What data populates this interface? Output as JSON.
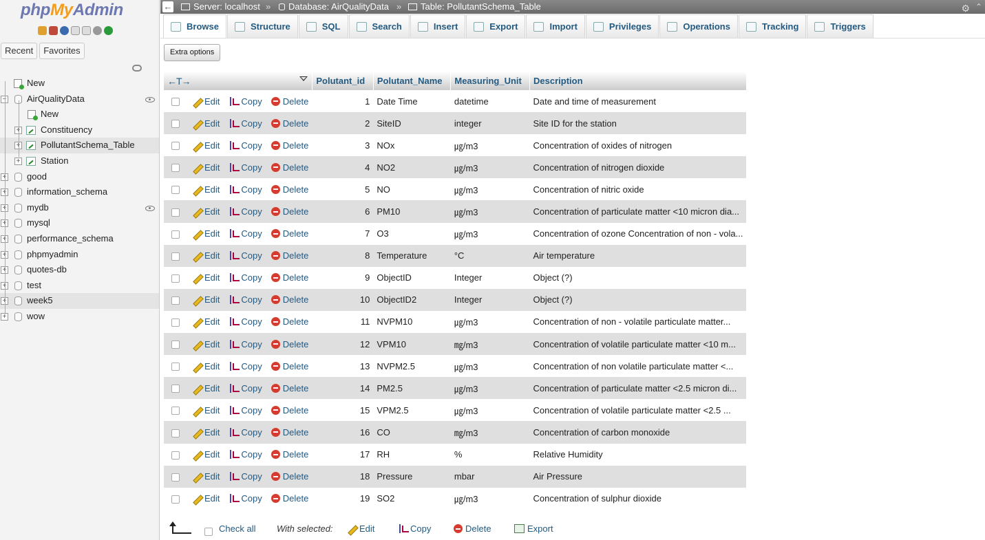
{
  "nav": {
    "logo_php": "php",
    "logo_my": "My",
    "logo_admin": "Admin",
    "tabs": [
      "Recent",
      "Favorites"
    ],
    "tree": [
      {
        "label": "New",
        "kind": "new",
        "level": 0
      },
      {
        "label": "AirQualityData",
        "kind": "db",
        "level": 0,
        "expanded": true,
        "eye": true
      },
      {
        "label": "New",
        "kind": "new",
        "level": 1
      },
      {
        "label": "Constituency",
        "kind": "table",
        "level": 1
      },
      {
        "label": "PollutantSchema_Table",
        "kind": "table",
        "level": 1,
        "selected": true
      },
      {
        "label": "Station",
        "kind": "table",
        "level": 1
      },
      {
        "label": "good",
        "kind": "db",
        "level": 0
      },
      {
        "label": "information_schema",
        "kind": "db",
        "level": 0
      },
      {
        "label": "mydb",
        "kind": "db",
        "level": 0,
        "eye": true
      },
      {
        "label": "mysql",
        "kind": "db",
        "level": 0
      },
      {
        "label": "performance_schema",
        "kind": "db",
        "level": 0
      },
      {
        "label": "phpmyadmin",
        "kind": "db",
        "level": 0
      },
      {
        "label": "quotes-db",
        "kind": "db",
        "level": 0
      },
      {
        "label": "test",
        "kind": "db",
        "level": 0
      },
      {
        "label": "week5",
        "kind": "db",
        "level": 0,
        "hover": true
      },
      {
        "label": "wow",
        "kind": "db",
        "level": 0
      }
    ]
  },
  "breadcrumb": {
    "server": "Server: localhost",
    "database": "Database: AirQualityData",
    "table": "Table: PollutantSchema_Table",
    "separator": "»"
  },
  "tabs": [
    {
      "label": "Browse",
      "icon": "browse-icon",
      "active": true
    },
    {
      "label": "Structure",
      "icon": "structure-icon"
    },
    {
      "label": "SQL",
      "icon": "sql-icon"
    },
    {
      "label": "Search",
      "icon": "search-icon"
    },
    {
      "label": "Insert",
      "icon": "insert-icon"
    },
    {
      "label": "Export",
      "icon": "export-icon"
    },
    {
      "label": "Import",
      "icon": "import-icon"
    },
    {
      "label": "Privileges",
      "icon": "privileges-icon"
    },
    {
      "label": "Operations",
      "icon": "operations-icon"
    },
    {
      "label": "Tracking",
      "icon": "tracking-icon"
    },
    {
      "label": "Triggers",
      "icon": "triggers-icon"
    }
  ],
  "extra_options": "Extra options",
  "table": {
    "arrows": "←T→",
    "columns": [
      "Polutant_id",
      "Polutant_Name",
      "Measuring_Unit",
      "Description"
    ],
    "actions": {
      "edit": "Edit",
      "copy": "Copy",
      "delete": "Delete"
    },
    "rows": [
      {
        "id": "1",
        "name": "Date Time",
        "unit": "datetime",
        "desc": "Date and time of measurement"
      },
      {
        "id": "2",
        "name": "SiteID",
        "unit": "integer",
        "desc": "Site ID for the station"
      },
      {
        "id": "3",
        "name": "NOx",
        "unit": "㎍/m3",
        "desc": "Concentration of oxides of nitrogen"
      },
      {
        "id": "4",
        "name": "NO2",
        "unit": "㎍/m3",
        "desc": "Concentration of nitrogen dioxide"
      },
      {
        "id": "5",
        "name": "NO",
        "unit": "㎍/m3",
        "desc": "Concentration of nitric oxide"
      },
      {
        "id": "6",
        "name": "PM10",
        "unit": "㎍/m3",
        "desc": "Concentration of particulate matter <10 micron dia..."
      },
      {
        "id": "7",
        "name": "O3",
        "unit": "㎍/m3",
        "desc": "Concentration of ozone Concentration of non - vola..."
      },
      {
        "id": "8",
        "name": "Temperature",
        "unit": "°C",
        "desc": "Air temperature"
      },
      {
        "id": "9",
        "name": "ObjectID",
        "unit": "Integer",
        "desc": "Object (?)"
      },
      {
        "id": "10",
        "name": "ObjectID2",
        "unit": "Integer",
        "desc": "Object (?)"
      },
      {
        "id": "11",
        "name": "NVPM10",
        "unit": "㎍/m3",
        "desc": "Concentration of non - volatile particulate matter..."
      },
      {
        "id": "12",
        "name": "VPM10",
        "unit": "㎎/m3",
        "desc": "Concentration of volatile particulate matter <10 m..."
      },
      {
        "id": "13",
        "name": "NVPM2.5",
        "unit": "㎍/m3",
        "desc": "Concentration of non volatile particulate matter <..."
      },
      {
        "id": "14",
        "name": "PM2.5",
        "unit": "㎍/m3",
        "desc": "Concentration of particulate matter <2.5 micron di..."
      },
      {
        "id": "15",
        "name": "VPM2.5",
        "unit": "㎍/m3",
        "desc": "Concentration of volatile particulate matter <2.5 ..."
      },
      {
        "id": "16",
        "name": "CO",
        "unit": "㎎/m3",
        "desc": "Concentration of carbon monoxide"
      },
      {
        "id": "17",
        "name": "RH",
        "unit": "%",
        "desc": "Relative Humidity"
      },
      {
        "id": "18",
        "name": "Pressure",
        "unit": "mbar",
        "desc": "Air Pressure"
      },
      {
        "id": "19",
        "name": "SO2",
        "unit": "㎍/m3",
        "desc": "Concentration of sulphur dioxide"
      }
    ]
  },
  "footer": {
    "check_all": "Check all",
    "with_selected": "With selected:",
    "edit": "Edit",
    "copy": "Copy",
    "delete": "Delete",
    "export": "Export"
  },
  "colors": {
    "link": "#235a81",
    "row_alt": "#dfdfdf",
    "logo_blue": "#6c78af",
    "logo_orange": "#f29d1b"
  }
}
